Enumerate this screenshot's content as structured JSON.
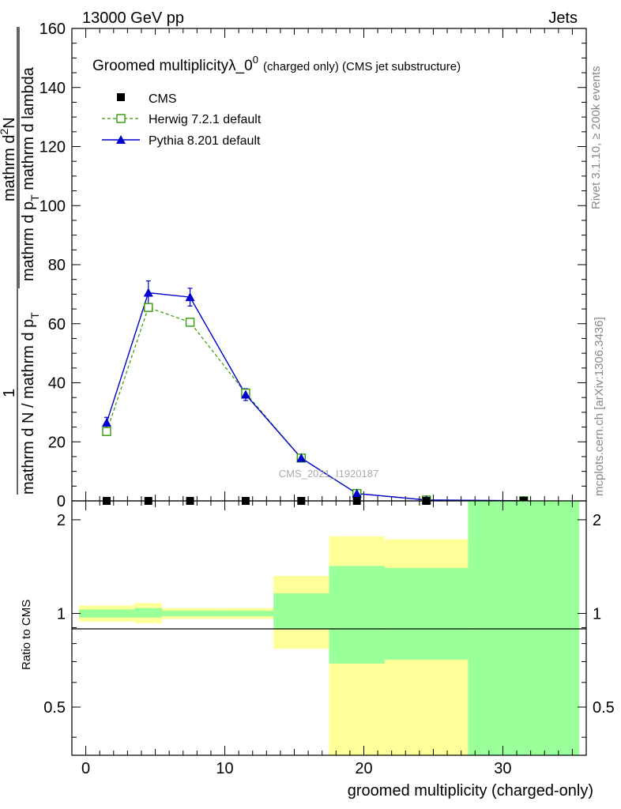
{
  "header": {
    "left": "13000 GeV pp",
    "right": "Jets"
  },
  "side_labels": {
    "rivet": "Rivet 3.1.10, ≥ 200k events",
    "mcplots": "mcplots.cern.ch [arXiv:1306.3436]"
  },
  "watermark": "CMS_2021_I1920187",
  "colors": {
    "herwig": "#339900",
    "pythia": "#0000cc",
    "band_inner": "#99ff99",
    "band_outer": "#ffff99"
  },
  "chart_data": [
    {
      "type": "line",
      "title": "Groomed multiplicityλ_0",
      "title_superscript": "0",
      "title_suffix": "(charged only) (CMS jet substructure)",
      "ylabel_numerator": "mathrm d",
      "ylabel_numerator_sup": "2",
      "ylabel_numerator_tail": "N",
      "ylabel_denominator": "mathrm d p",
      "ylabel_denominator_sub": "T",
      "ylabel_denominator_tail": " mathrm d lambda",
      "ylabel_prefactor_num": "1",
      "ylabel_prefactor_den": "mathrm d N / mathrm d p",
      "ylabel_prefactor_den_sub": "T",
      "ylim": [
        0,
        160
      ],
      "xlim": [
        -1,
        36
      ],
      "y_ticks": [
        0,
        20,
        40,
        60,
        80,
        100,
        120,
        140,
        160
      ],
      "legend_position": "top-left",
      "legend": [
        "CMS",
        "Herwig 7.2.1 default",
        "Pythia 8.201 default"
      ],
      "series": [
        {
          "name": "CMS",
          "marker": "square",
          "x": [
            1.5,
            4.5,
            7.5,
            11.5,
            15.5,
            19.5,
            24.5,
            31.5
          ],
          "y": [
            0,
            0,
            0,
            0,
            0,
            0,
            0,
            0
          ]
        },
        {
          "name": "Herwig 7.2.1 default",
          "marker": "open-square",
          "style": "dashed",
          "x": [
            1.5,
            4.5,
            7.5,
            11.5,
            15.5,
            19.5,
            24.5,
            31.5
          ],
          "y": [
            23.5,
            65.5,
            60.5,
            36.5,
            14.5,
            2.5,
            0.3,
            0.05
          ]
        },
        {
          "name": "Pythia 8.201 default",
          "marker": "filled-triangle",
          "style": "solid",
          "x": [
            1.5,
            4.5,
            7.5,
            11.5,
            15.5,
            19.5,
            24.5,
            31.5
          ],
          "y": [
            26.5,
            70.5,
            69.0,
            36.0,
            14.5,
            2.5,
            0.3,
            0.05
          ],
          "yerr": [
            1.8,
            4.0,
            3.0,
            2.0,
            1.2,
            0.5,
            0.1,
            0.02
          ]
        }
      ]
    },
    {
      "type": "area",
      "ylabel": "Ratio to CMS",
      "xlabel": "groomed multiplicity (charged-only)",
      "ylim": [
        0.35,
        2.3
      ],
      "y_ticks": [
        0.5,
        1,
        2
      ],
      "x_ticks": [
        0,
        10,
        20,
        30
      ],
      "bins": [
        {
          "x0": -0.5,
          "x1": 3.5,
          "inner": [
            0.97,
            1.03
          ],
          "outer": [
            0.94,
            1.06
          ]
        },
        {
          "x0": 3.5,
          "x1": 5.5,
          "inner": [
            0.97,
            1.04
          ],
          "outer": [
            0.93,
            1.08
          ]
        },
        {
          "x0": 5.5,
          "x1": 9.5,
          "inner": [
            0.98,
            1.02
          ],
          "outer": [
            0.96,
            1.04
          ]
        },
        {
          "x0": 9.5,
          "x1": 13.5,
          "inner": [
            0.98,
            1.02
          ],
          "outer": [
            0.96,
            1.04
          ]
        },
        {
          "x0": 13.5,
          "x1": 17.5,
          "inner": [
            0.89,
            1.16
          ],
          "outer": [
            0.77,
            1.32
          ]
        },
        {
          "x0": 17.5,
          "x1": 21.5,
          "inner": [
            0.69,
            1.42
          ],
          "outer": [
            0.35,
            1.77
          ]
        },
        {
          "x0": 21.5,
          "x1": 27.5,
          "inner": [
            0.71,
            1.4
          ],
          "outer": [
            0.35,
            1.73
          ]
        },
        {
          "x0": 27.5,
          "x1": 35.5,
          "inner": [
            0.35,
            2.3
          ],
          "outer": [
            0.35,
            2.3
          ]
        }
      ]
    }
  ]
}
